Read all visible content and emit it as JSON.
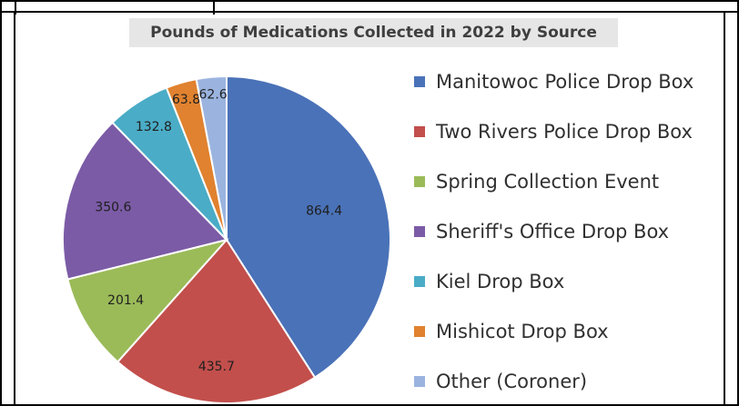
{
  "chart_data": {
    "type": "pie",
    "title": "Pounds of Medications Collected in 2022 by Source",
    "categories": [
      "Manitowoc Police Drop Box",
      "Two Rivers Police Drop Box",
      "Spring Collection Event",
      "Sheriff's Office Drop Box",
      "Kiel Drop Box",
      "Mishicot Drop Box",
      "Other (Coroner)"
    ],
    "values": [
      864.4,
      435.7,
      201.4,
      350.6,
      132.8,
      63.8,
      62.6
    ],
    "data_labels": [
      "864.4",
      "435.7",
      "201.4",
      "350.6",
      "132.8",
      "63.8",
      "62.6"
    ],
    "colors": [
      "#4a72b8",
      "#c24f4c",
      "#9bbb59",
      "#7b5ba6",
      "#4aacc6",
      "#e0822f",
      "#9bb4df"
    ],
    "legend_position": "right",
    "start_angle": "12 o'clock, clockwise"
  }
}
